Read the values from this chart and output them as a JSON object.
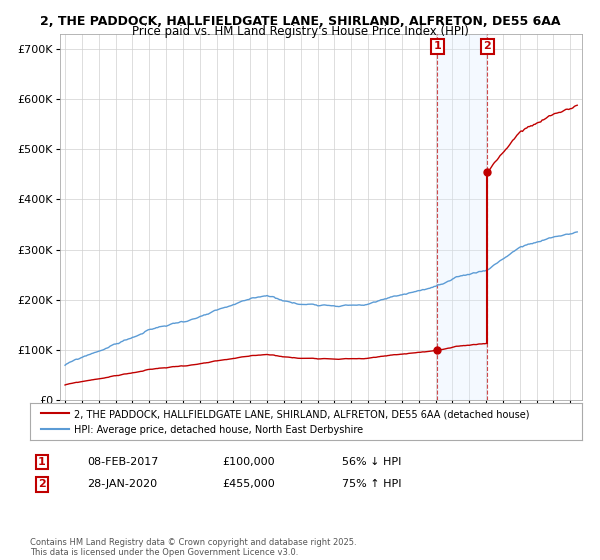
{
  "title1": "2, THE PADDOCK, HALLFIELDGATE LANE, SHIRLAND, ALFRETON, DE55 6AA",
  "title2": "Price paid vs. HM Land Registry's House Price Index (HPI)",
  "ylim": [
    0,
    730000
  ],
  "yticks": [
    0,
    100000,
    200000,
    300000,
    400000,
    500000,
    600000,
    700000
  ],
  "ytick_labels": [
    "£0",
    "£100K",
    "£200K",
    "£300K",
    "£400K",
    "£500K",
    "£600K",
    "£700K"
  ],
  "hpi_color": "#5b9bd5",
  "price_color": "#c00000",
  "sale1_date": 2017.1,
  "sale1_price": 100000,
  "sale2_date": 2020.08,
  "sale2_price": 455000,
  "legend1_label": "2, THE PADDOCK, HALLFIELDGATE LANE, SHIRLAND, ALFRETON, DE55 6AA (detached house)",
  "legend2_label": "HPI: Average price, detached house, North East Derbyshire",
  "transaction1_date": "08-FEB-2017",
  "transaction1_price": "£100,000",
  "transaction1_hpi": "56% ↓ HPI",
  "transaction2_date": "28-JAN-2020",
  "transaction2_price": "£455,000",
  "transaction2_hpi": "75% ↑ HPI",
  "footnote": "Contains HM Land Registry data © Crown copyright and database right 2025.\nThis data is licensed under the Open Government Licence v3.0.",
  "background_color": "#ffffff",
  "grid_color": "#d0d0d0",
  "shade_color": "#ddeeff"
}
